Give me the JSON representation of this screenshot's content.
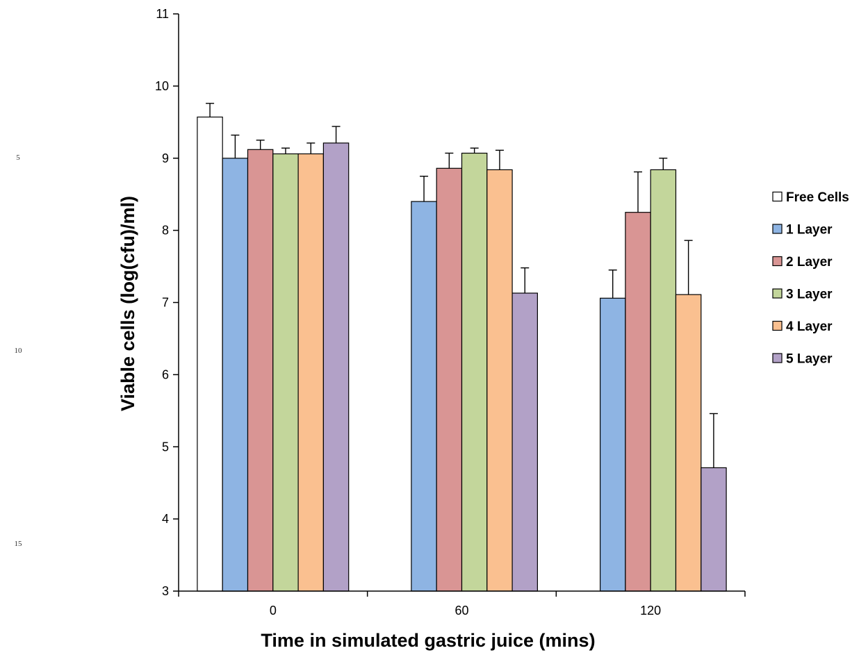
{
  "margin_line_numbers": [
    "5",
    "10",
    "15"
  ],
  "chart_data": {
    "type": "bar",
    "title": "",
    "xlabel": "Time in simulated gastric juice (mins)",
    "ylabel": "Viable cells (log(cfu)/ml)",
    "ylim": [
      3,
      11
    ],
    "yticks": [
      3,
      4,
      5,
      6,
      7,
      8,
      9,
      10,
      11
    ],
    "categories": [
      "0",
      "60",
      "120"
    ],
    "grid": false,
    "legend_position": "right",
    "series": [
      {
        "name": "Free Cells",
        "color": "#ffffff",
        "values": [
          9.57,
          null,
          null
        ],
        "errors": [
          0.19,
          null,
          null
        ]
      },
      {
        "name": "1 Layer",
        "color": "#8eb4e3",
        "values": [
          9.0,
          8.4,
          7.06
        ],
        "errors": [
          0.32,
          0.35,
          0.39
        ]
      },
      {
        "name": "2 Layer",
        "color": "#d99594",
        "values": [
          9.12,
          8.86,
          8.25
        ],
        "errors": [
          0.13,
          0.21,
          0.56
        ]
      },
      {
        "name": "3 Layer",
        "color": "#c3d69b",
        "values": [
          9.06,
          9.07,
          8.84
        ],
        "errors": [
          0.08,
          0.07,
          0.16
        ]
      },
      {
        "name": "4 Layer",
        "color": "#fac090",
        "values": [
          9.06,
          8.84,
          7.11
        ],
        "errors": [
          0.15,
          0.27,
          0.75
        ]
      },
      {
        "name": "5 Layer",
        "color": "#b2a1c7",
        "values": [
          9.21,
          7.13,
          4.71
        ],
        "errors": [
          0.23,
          0.35,
          0.75
        ]
      }
    ]
  }
}
